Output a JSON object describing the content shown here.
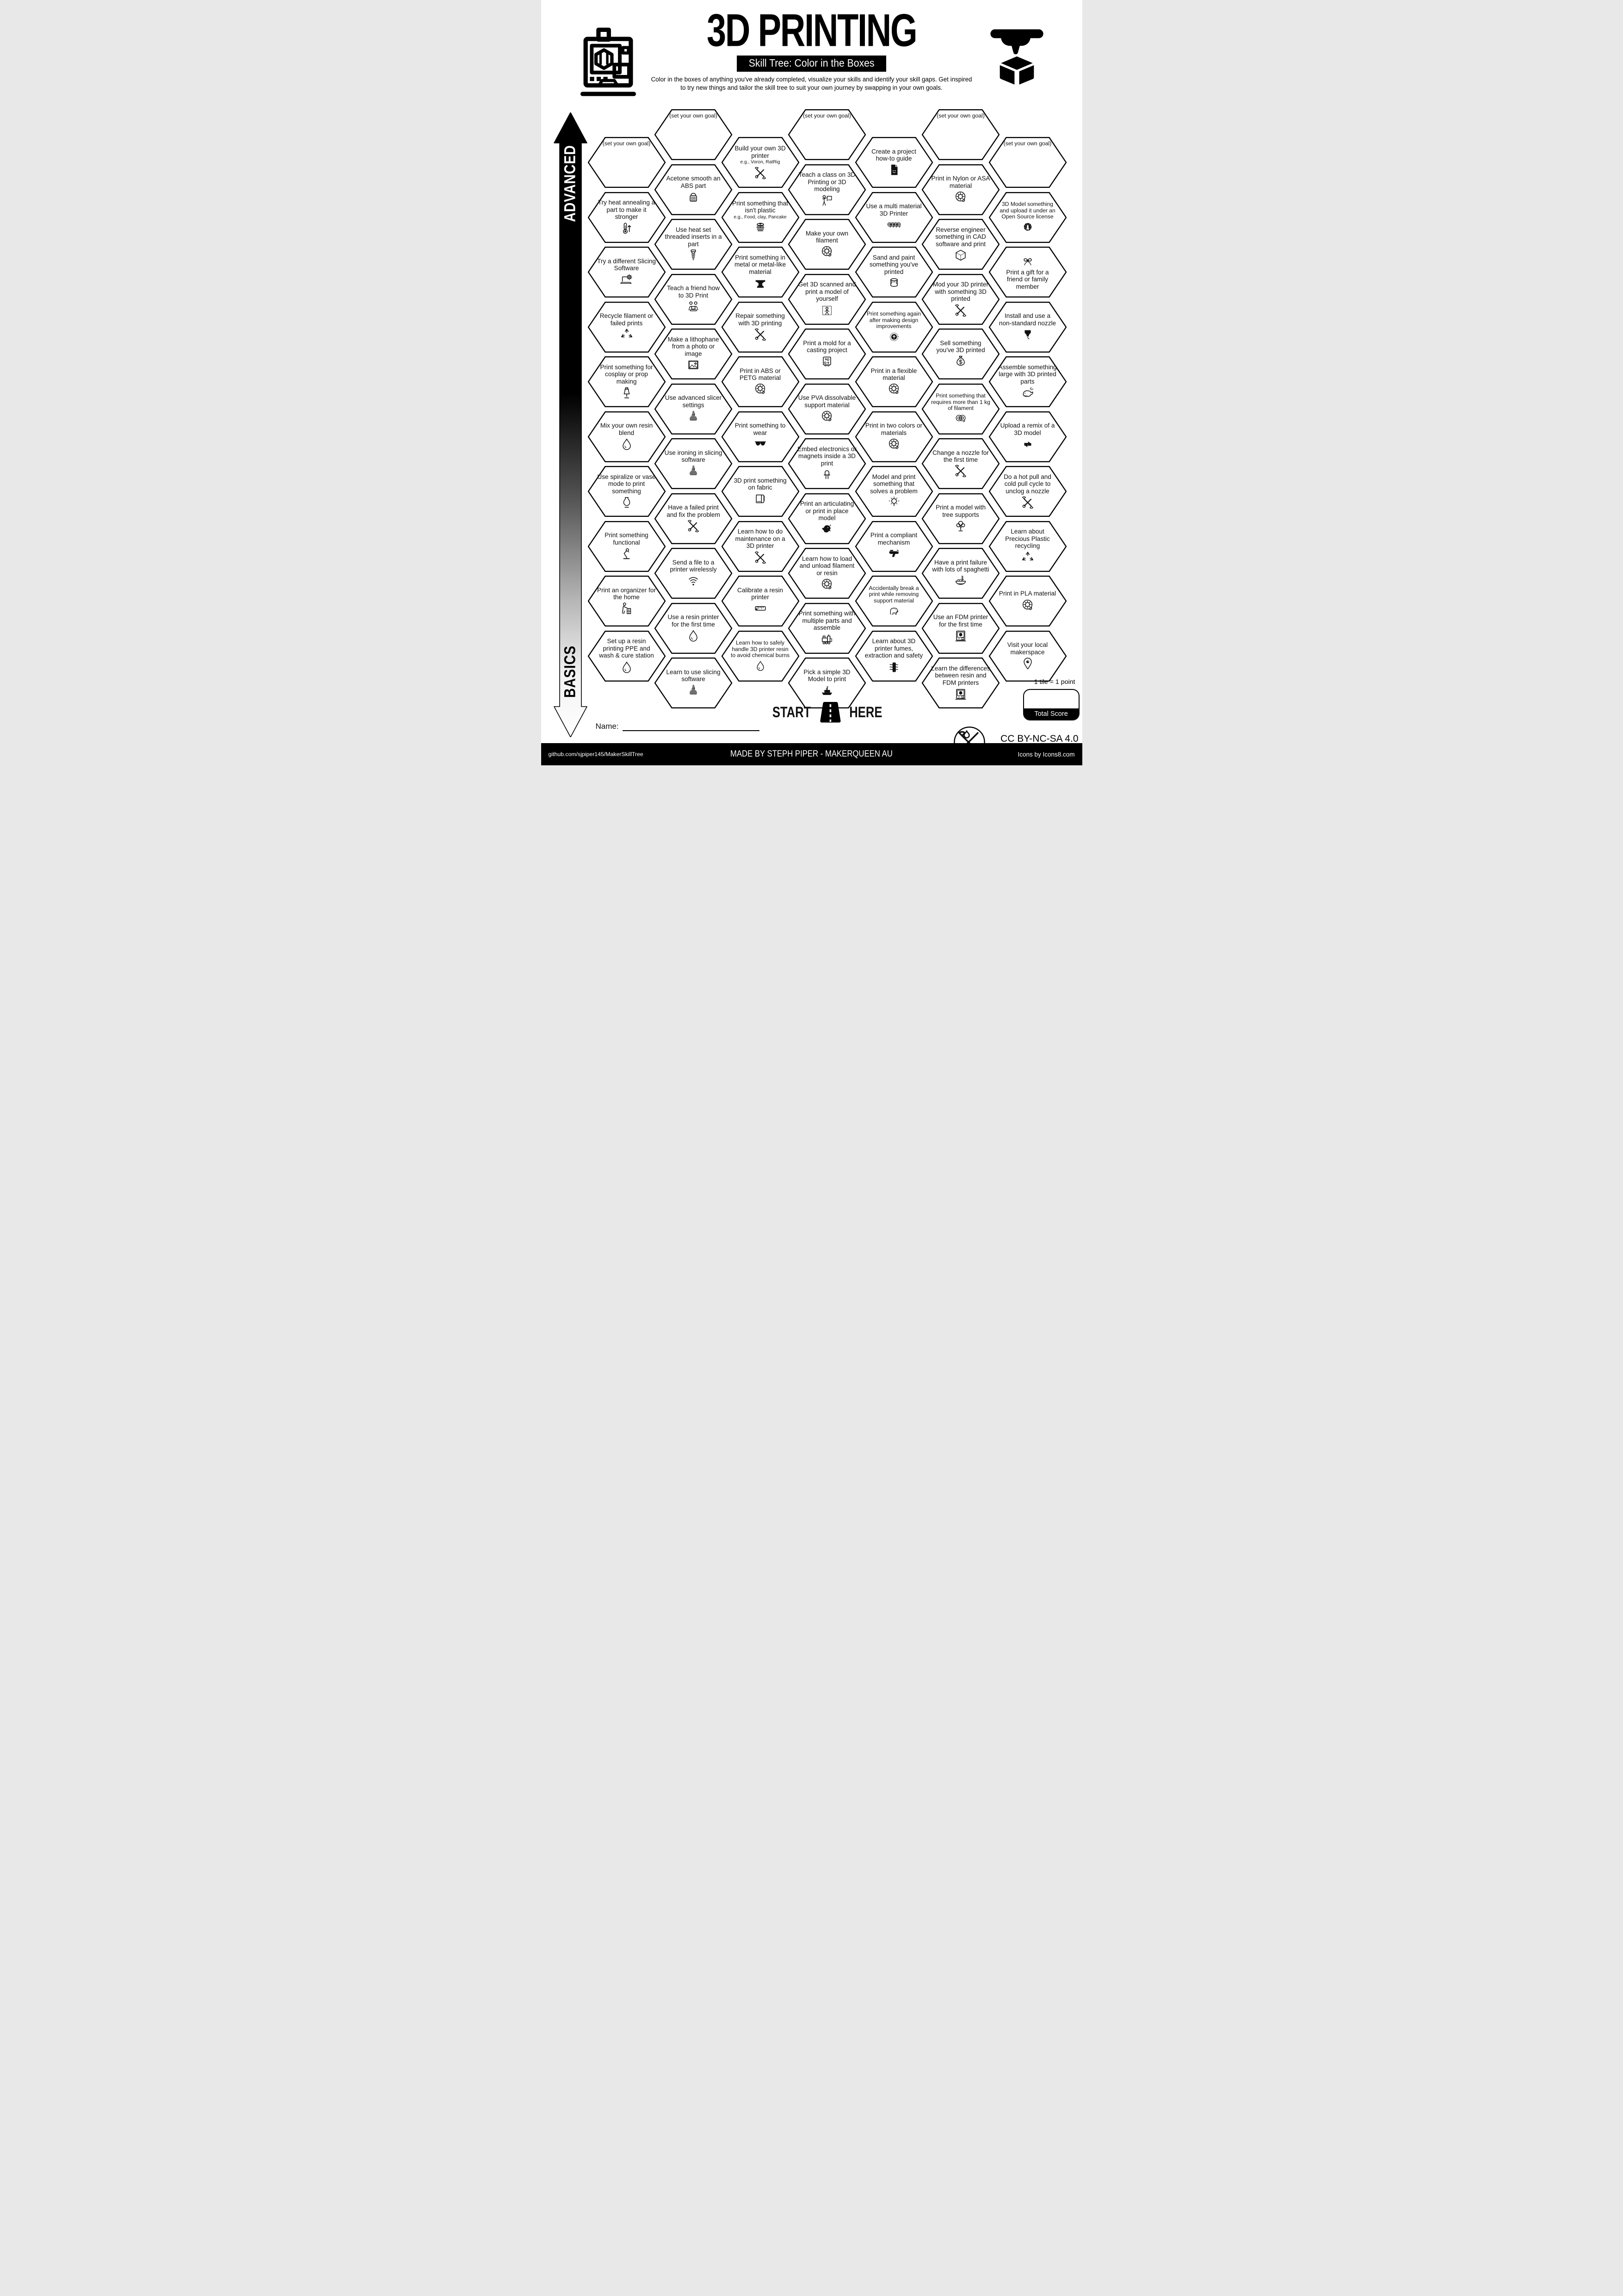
{
  "header": {
    "title": "3D PRINTING",
    "subtitle": "Skill Tree: Color in the Boxes",
    "description_line1": "Color in the boxes of anything you've already completed, visualize your skills and identify your skill gaps.  Get inspired",
    "description_line2": "to try new things and tailor the skill tree to suit your own journey by swapping in your own goals."
  },
  "axis": {
    "top_label": "ADVANCED",
    "bottom_label": "BASICS"
  },
  "grid": {
    "goal_label": "(set your own goal)",
    "columns": [
      {
        "tiles": [
          {
            "goal": true
          },
          {
            "label": "Try heat annealing a part to make it stronger",
            "icon": "thermometer-up"
          },
          {
            "label": "Try a different Slicing Software",
            "icon": "laptop-gear"
          },
          {
            "label": "Recycle filament or failed prints",
            "icon": "recycle"
          },
          {
            "label": "Print something for cosplay or prop making",
            "icon": "mannequin"
          },
          {
            "label": "Mix your own resin blend",
            "icon": "droplet"
          },
          {
            "label": "Use spiralize or vase mode to print something",
            "icon": "vase"
          },
          {
            "label": "Print something functional",
            "icon": "desk-lamp"
          },
          {
            "label": "Print an organizer for the home",
            "icon": "person-organizer"
          },
          {
            "label": "Set up a resin printing PPE and wash & cure station",
            "icon": "droplet"
          }
        ]
      },
      {
        "tiles": [
          {
            "goal": true
          },
          {
            "label": "Acetone smooth an ABS part",
            "icon": "acetone-container"
          },
          {
            "label": "Use heat set threaded inserts in a part",
            "icon": "screw"
          },
          {
            "label": "Teach a friend how to 3D Print",
            "icon": "people-laptop"
          },
          {
            "label": "Make a lithophane from a photo or image",
            "icon": "photo"
          },
          {
            "label": "Use advanced slicer settings",
            "icon": "sliced-model"
          },
          {
            "label": "Use ironing in slicing software",
            "icon": "sliced-model"
          },
          {
            "label": "Have a failed print and fix the problem",
            "icon": "tools"
          },
          {
            "label": "Send a file to a printer wirelessly",
            "icon": "wifi"
          },
          {
            "label": "Use a resin printer for the first time",
            "icon": "droplet"
          },
          {
            "label": "Learn to use slicing software",
            "icon": "sliced-model"
          }
        ]
      },
      {
        "tiles": [
          {
            "label": "Build your own 3D printer",
            "sub": "e.g., Voron, RatRig",
            "icon": "tools"
          },
          {
            "label": "Print something that isn't plastic",
            "sub": "e.g., Food, clay, Pancake",
            "icon": "pancake"
          },
          {
            "label": "Print something in metal or metal-like material",
            "icon": "anvil"
          },
          {
            "label": "Repair something with 3D printing",
            "icon": "tools"
          },
          {
            "label": "Print in ABS or PETG material",
            "icon": "spool"
          },
          {
            "label": "Print something to wear",
            "icon": "sunglasses"
          },
          {
            "label": "3D print something on fabric",
            "icon": "fabric"
          },
          {
            "label": "Learn how to do maintenance on a 3D printer",
            "icon": "tools"
          },
          {
            "label": "Calibrate a resin printer",
            "icon": "ruler"
          },
          {
            "label": "Learn how to safely handle 3D printer resin to avoid chemical burns",
            "icon": "droplet"
          }
        ]
      },
      {
        "tiles": [
          {
            "goal": true
          },
          {
            "label": "Teach a class on 3D Printing or 3D modeling",
            "icon": "presenter"
          },
          {
            "label": "Make your own filament",
            "icon": "spool"
          },
          {
            "label": "Get 3D scanned and print a model of yourself",
            "icon": "person-scan"
          },
          {
            "label": "Print a mold for a casting project",
            "icon": "mold"
          },
          {
            "label": "Use PVA dissolvable support material",
            "icon": "spool"
          },
          {
            "label": "Embed electronics or magnets inside a 3D print",
            "icon": "led"
          },
          {
            "label": "Print an articulating or print in place model",
            "icon": "dragon"
          },
          {
            "label": "Learn how to load and unload filament or resin",
            "icon": "spool"
          },
          {
            "label": "Print something with multiple parts and assemble",
            "icon": "train"
          },
          {
            "label": "Pick a simple 3D Model to print",
            "icon": "benchy"
          }
        ]
      },
      {
        "tiles": [
          {
            "label": "Create a project how-to guide",
            "icon": "document"
          },
          {
            "label": "Use a multi material 3D Printer",
            "icon": "four-spools"
          },
          {
            "label": "Sand and paint something you've printed",
            "icon": "paint-can"
          },
          {
            "label": "Print something again after making design improvements",
            "icon": "arrow-up-circle"
          },
          {
            "label": "Print in a flexible material",
            "icon": "spool"
          },
          {
            "label": "Print in two colors or materials",
            "icon": "spool"
          },
          {
            "label": "Model and print something that solves a problem",
            "icon": "lightbulb"
          },
          {
            "label": "Print a compliant mechanism",
            "icon": "blaster"
          },
          {
            "label": "Accidentally break a print while removing support material",
            "icon": "elephant"
          },
          {
            "label": "Learn about 3D printer fumes, extraction and safety",
            "icon": "air-filter"
          }
        ]
      },
      {
        "tiles": [
          {
            "goal": true
          },
          {
            "label": "Print in Nylon or ASA material",
            "icon": "spool"
          },
          {
            "label": "Reverse engineer something in CAD software and print",
            "icon": "cube"
          },
          {
            "label": "Mod your 3D printer with something 3D printed",
            "icon": "tools"
          },
          {
            "label": "Sell something you've 3D printed",
            "icon": "money-bag"
          },
          {
            "label": "Print something that requires more than 1 kg of filament",
            "icon": "two-spools"
          },
          {
            "label": "Change a nozzle for the first time",
            "icon": "tools"
          },
          {
            "label": "Print a model with tree supports",
            "icon": "tree"
          },
          {
            "label": "Have a print failure  with lots of spaghetti",
            "icon": "noodle-bowl"
          },
          {
            "label": "Use an FDM printer for the first time",
            "icon": "fdm-printer"
          },
          {
            "label": "Learn the differences between resin and FDM printers",
            "icon": "fdm-printer"
          }
        ]
      },
      {
        "tiles": [
          {
            "goal": true
          },
          {
            "label": "3D Model something and upload it under an Open Source license",
            "icon": "open-source"
          },
          {
            "label": "Print a gift for a friend or family member",
            "icon": "gift-bow",
            "icon_top": true
          },
          {
            "label": "Install and use a non-standard nozzle",
            "icon": "nozzle"
          },
          {
            "label": "Assemble something large with 3D printed parts",
            "icon": "whale"
          },
          {
            "label": "Upload a remix of a 3D model",
            "icon": "remix"
          },
          {
            "label": "Do a hot pull and cold pull cycle to unclog a nozzle",
            "icon": "tools"
          },
          {
            "label": "Learn about Precious Plastic recycling",
            "icon": "recycle"
          },
          {
            "label": "Print in PLA material",
            "icon": "spool"
          },
          {
            "label": "Visit your local makerspace",
            "icon": "location-pin"
          }
        ]
      }
    ]
  },
  "start": {
    "left": "START",
    "right": "HERE"
  },
  "name_field": {
    "label": "Name:",
    "value": ""
  },
  "score": {
    "note": "1 tile = 1 point",
    "label": "Total Score",
    "value": ""
  },
  "license": {
    "text": "CC BY-NC-SA 4.0"
  },
  "footer": {
    "left": "github.com/sjpiper145/MakerSkillTree",
    "center": "MADE BY STEPH PIPER  -  MAKERQUEEN AU",
    "right": "Icons by Icons8.com"
  }
}
